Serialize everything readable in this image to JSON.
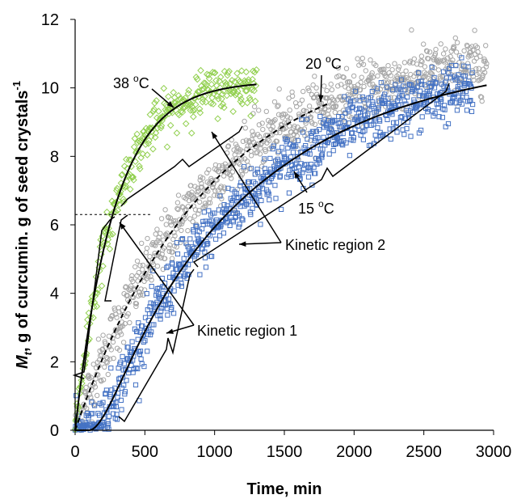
{
  "chart_data": {
    "type": "scatter",
    "xlabel": "Time, min",
    "ylabel": {
      "var": "M",
      "sub": "t",
      "rest": ", g of curcumin. g of seed crystals",
      "sup": "-1"
    },
    "xlim": [
      0,
      3000
    ],
    "ylim": [
      0,
      12
    ],
    "x_ticks": [
      "0",
      "500",
      "1000",
      "1500",
      "2000",
      "2500",
      "3000"
    ],
    "y_ticks": [
      "0",
      "2",
      "4",
      "6",
      "8",
      "10",
      "12"
    ],
    "grid": false,
    "legend": "none",
    "series": [
      {
        "temperature": 38,
        "marker": "diamond",
        "color": "#92D050",
        "fit": {
          "model": "exponential",
          "asymptote": 10.2,
          "tau_min": 280
        },
        "x_range": [
          0,
          1300
        ]
      },
      {
        "temperature": 20,
        "marker": "circle",
        "color": "#A6A6A6",
        "fit": {
          "model": "exponential",
          "asymptote": 11.2,
          "tau_min": 950
        },
        "x_range": [
          0,
          2950
        ]
      },
      {
        "temperature": 15,
        "marker": "square",
        "color": "#4472C4",
        "fit": {
          "model": "sigmoid",
          "asymptote": 11.0,
          "tau_min": 1150,
          "lag_min": 100
        },
        "x_range": [
          0,
          2850
        ]
      }
    ],
    "annotations": {
      "t38": {
        "base": "38 ",
        "sup": "o",
        "unit": "C"
      },
      "t20": {
        "base": "20 ",
        "sup": "o",
        "unit": "C"
      },
      "t15": {
        "base": "15 ",
        "sup": "o",
        "unit": "C"
      },
      "kin1": "Kinetic region 1",
      "kin2": "Kinetic region 2"
    },
    "reference_line_y": 6.3,
    "colors": {
      "s38": "#92D050",
      "s20": "#A6A6A6",
      "s15": "#4472C4",
      "fit": "#000000"
    }
  }
}
